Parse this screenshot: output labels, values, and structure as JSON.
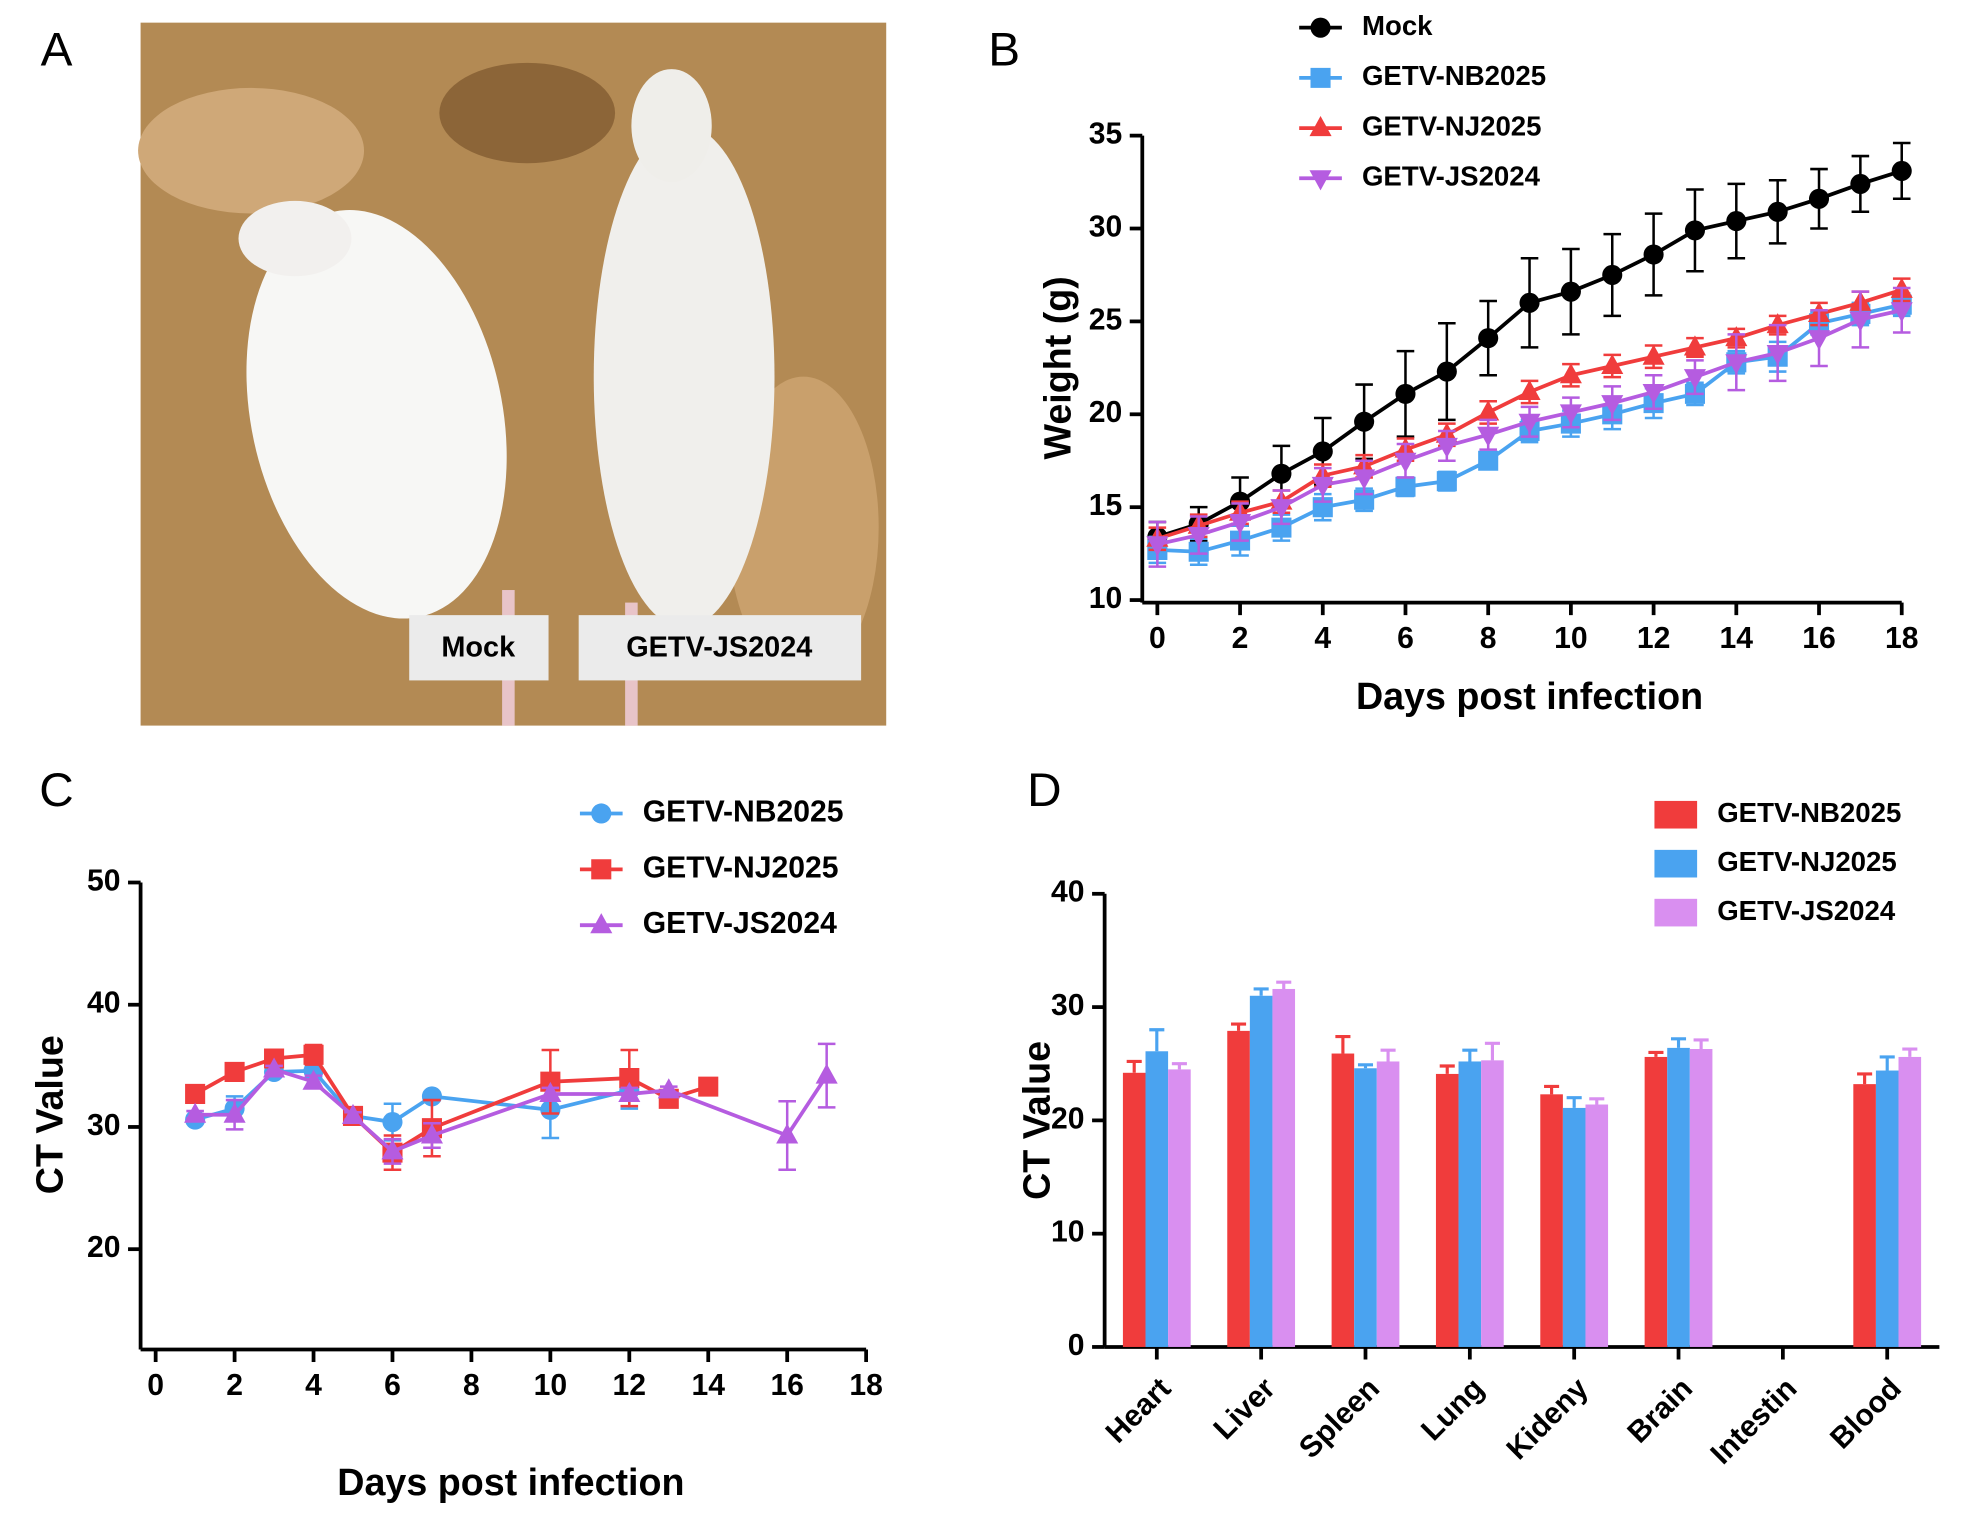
{
  "panel_labels": [
    "A",
    "B",
    "C",
    "D"
  ],
  "photo": {
    "labels": [
      "Mock",
      "GETV-JS2024"
    ]
  },
  "chart_data": [
    {
      "type": "line",
      "x_label": "Days post infection",
      "y_label": "Weight (g)",
      "x": [
        0,
        1,
        2,
        3,
        4,
        5,
        6,
        7,
        8,
        9,
        10,
        11,
        12,
        13,
        14,
        15,
        16,
        17,
        18
      ],
      "xlim": [
        0,
        18
      ],
      "xticks": [
        0,
        2,
        4,
        6,
        8,
        10,
        12,
        14,
        16,
        18
      ],
      "ylim": [
        10,
        35
      ],
      "yticks": [
        10,
        15,
        20,
        25,
        30,
        35
      ],
      "series": [
        {
          "name": "Mock",
          "color": "#000000",
          "marker": "circle",
          "values": [
            13.4,
            14.1,
            15.3,
            16.8,
            18.0,
            19.6,
            21.1,
            22.3,
            24.1,
            26.0,
            26.6,
            27.5,
            28.6,
            29.9,
            30.4,
            30.9,
            31.6,
            32.4,
            33.1
          ],
          "errors": [
            0.8,
            0.9,
            1.3,
            1.5,
            1.8,
            2.0,
            2.3,
            2.6,
            2.0,
            2.4,
            2.3,
            2.2,
            2.2,
            2.2,
            2.0,
            1.7,
            1.6,
            1.5,
            1.5
          ]
        },
        {
          "name": "GETV-NB2025",
          "color": "#4aa3f0",
          "marker": "square",
          "values": [
            12.7,
            12.6,
            13.2,
            13.9,
            15.0,
            15.4,
            16.1,
            16.4,
            17.5,
            19.1,
            19.5,
            20.0,
            20.6,
            21.1,
            22.8,
            23.1,
            24.9,
            25.4,
            25.9
          ],
          "errors": [
            0.7,
            0.7,
            0.8,
            0.7,
            0.7,
            0.6,
            0.5,
            0.5,
            0.4,
            0.6,
            0.7,
            0.8,
            0.8,
            0.6,
            0.6,
            0.8,
            0.6,
            0.6,
            0.6
          ]
        },
        {
          "name": "GETV-NJ2025",
          "color": "#f03c3c",
          "marker": "triangle-up",
          "values": [
            13.3,
            14.0,
            14.7,
            15.3,
            16.7,
            17.2,
            18.1,
            18.9,
            20.1,
            21.2,
            22.1,
            22.6,
            23.1,
            23.6,
            24.1,
            24.8,
            25.4,
            26.0,
            26.7
          ],
          "errors": [
            0.6,
            0.6,
            0.6,
            0.6,
            0.6,
            0.6,
            0.6,
            0.6,
            0.6,
            0.6,
            0.6,
            0.6,
            0.6,
            0.5,
            0.5,
            0.5,
            0.6,
            0.6,
            0.6
          ]
        },
        {
          "name": "GETV-JS2024",
          "color": "#b55ce0",
          "marker": "triangle-down",
          "values": [
            13.0,
            13.5,
            14.2,
            15.0,
            16.2,
            16.6,
            17.5,
            18.3,
            18.9,
            19.6,
            20.1,
            20.6,
            21.2,
            22.0,
            22.8,
            23.3,
            24.1,
            25.1,
            25.6
          ],
          "errors": [
            1.2,
            1.0,
            1.0,
            0.9,
            0.9,
            0.9,
            0.9,
            0.8,
            0.8,
            0.8,
            0.8,
            0.9,
            0.9,
            0.9,
            1.5,
            1.5,
            1.5,
            1.5,
            1.2
          ]
        }
      ]
    },
    {
      "type": "line",
      "x_label": "Days post infection",
      "y_label": "CT Value",
      "xlim": [
        0,
        18
      ],
      "xticks": [
        0,
        2,
        4,
        6,
        8,
        10,
        12,
        14,
        16,
        18
      ],
      "ylim": [
        12,
        50
      ],
      "yticks": [
        20,
        30,
        40,
        50
      ],
      "series": [
        {
          "name": "GETV-NB2025",
          "color": "#4aa3f0",
          "marker": "circle",
          "x": [
            1,
            2,
            3,
            4,
            5,
            6,
            7,
            10,
            12
          ],
          "values": [
            30.6,
            31.5,
            34.5,
            34.6,
            30.9,
            30.4,
            32.5,
            31.4,
            33.0
          ],
          "errors": [
            0.3,
            1.0,
            0.3,
            0.5,
            0.3,
            1.5,
            0.3,
            2.3,
            1.5
          ]
        },
        {
          "name": "GETV-NJ2025",
          "color": "#f03c3c",
          "marker": "square",
          "x": [
            1,
            2,
            3,
            4,
            5,
            6,
            7,
            10,
            12,
            13,
            14
          ],
          "values": [
            32.7,
            34.5,
            35.6,
            35.9,
            30.9,
            27.9,
            29.9,
            33.7,
            34.0,
            32.3,
            33.3
          ],
          "errors": [
            0.5,
            0.4,
            0.4,
            0.8,
            0.3,
            1.4,
            2.3,
            2.6,
            2.3,
            0.3,
            0.3
          ]
        },
        {
          "name": "GETV-JS2024",
          "color": "#b55ce0",
          "marker": "triangle-up",
          "x": [
            1,
            2,
            3,
            4,
            5,
            6,
            7,
            10,
            12,
            13,
            16,
            17
          ],
          "values": [
            31.0,
            31.0,
            34.7,
            33.7,
            30.9,
            28.0,
            29.3,
            32.7,
            32.7,
            33.0,
            29.3,
            34.2
          ],
          "errors": [
            0.3,
            1.2,
            0.3,
            0.5,
            0.3,
            1.0,
            1.0,
            0.5,
            0.5,
            0.3,
            2.8,
            2.6
          ]
        }
      ]
    },
    {
      "type": "bar",
      "y_label": "CT Value",
      "categories": [
        "Heart",
        "Liver",
        "Spleen",
        "Lung",
        "Kideny",
        "Brain",
        "Intestin",
        "Blood"
      ],
      "ylim": [
        0,
        40
      ],
      "yticks": [
        0,
        10,
        20,
        30,
        40
      ],
      "series": [
        {
          "name": "GETV-NB2025",
          "color": "#f03c3c",
          "values": [
            24.2,
            27.9,
            25.9,
            24.1,
            22.3,
            25.6,
            null,
            23.2
          ],
          "errors": [
            1.0,
            0.6,
            1.5,
            0.7,
            0.7,
            0.4,
            null,
            0.9
          ]
        },
        {
          "name": "GETV-NJ2025",
          "color": "#4aa3f0",
          "values": [
            26.1,
            31.0,
            24.6,
            25.2,
            21.1,
            26.4,
            null,
            24.4
          ],
          "errors": [
            1.9,
            0.6,
            0.3,
            1.0,
            0.9,
            0.8,
            null,
            1.2
          ]
        },
        {
          "name": "GETV-JS2024",
          "color": "#d98ff0",
          "values": [
            24.5,
            31.6,
            25.2,
            25.3,
            21.4,
            26.3,
            null,
            25.6
          ],
          "errors": [
            0.5,
            0.6,
            1.0,
            1.5,
            0.5,
            0.8,
            null,
            0.7
          ]
        }
      ]
    }
  ]
}
